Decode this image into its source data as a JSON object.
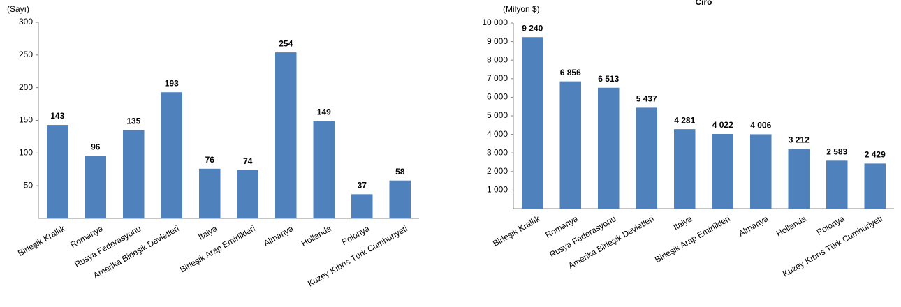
{
  "chart_data": [
    {
      "type": "bar",
      "unit_label": "(Sayı)",
      "categories": [
        "Birleşik Krallık",
        "Romanya",
        "Rusya Federasyonu",
        "Amerika Birleşik Devletleri",
        "İtalya",
        "Birleşik Arap Emirlikleri",
        "Almanya",
        "Hollanda",
        "Polonya",
        "Kuzey Kıbrıs Türk Cumhuriyeti"
      ],
      "values": [
        143,
        96,
        135,
        193,
        76,
        74,
        254,
        149,
        37,
        58
      ],
      "color": "#4f81bd",
      "ylim": [
        0,
        300
      ],
      "yticks": [
        50,
        100,
        150,
        200,
        250,
        300
      ]
    },
    {
      "type": "bar",
      "title": "Ciro",
      "unit_label": "(Milyon $)",
      "categories": [
        "Birleşik Krallık",
        "Romanya",
        "Rusya Federasyonu",
        "Amerika Birleşik Devletleri",
        "İtalya",
        "Birleşik Arap Emirlikleri",
        "Almanya",
        "Hollanda",
        "Polonya",
        "Kuzey Kıbrıs Türk Cumhuriyeti"
      ],
      "values": [
        9240,
        6856,
        6513,
        5437,
        4281,
        4022,
        4006,
        3212,
        2583,
        2429
      ],
      "value_labels": [
        "9 240",
        "6 856",
        "6 513",
        "5 437",
        "4 281",
        "4 022",
        "4 006",
        "3 212",
        "2 583",
        "2 429"
      ],
      "color": "#4f81bd",
      "ylim": [
        0,
        10000
      ],
      "yticks": [
        {
          "value": 1000,
          "label": "1 000"
        },
        {
          "value": 2000,
          "label": "2 000"
        },
        {
          "value": 3000,
          "label": "3 000"
        },
        {
          "value": 4000,
          "label": "4 000"
        },
        {
          "value": 5000,
          "label": "5 000"
        },
        {
          "value": 6000,
          "label": "6 000"
        },
        {
          "value": 7000,
          "label": "7 000"
        },
        {
          "value": 8000,
          "label": "8 000"
        },
        {
          "value": 9000,
          "label": "9 000"
        },
        {
          "value": 10000,
          "label": "10 000"
        }
      ]
    }
  ]
}
